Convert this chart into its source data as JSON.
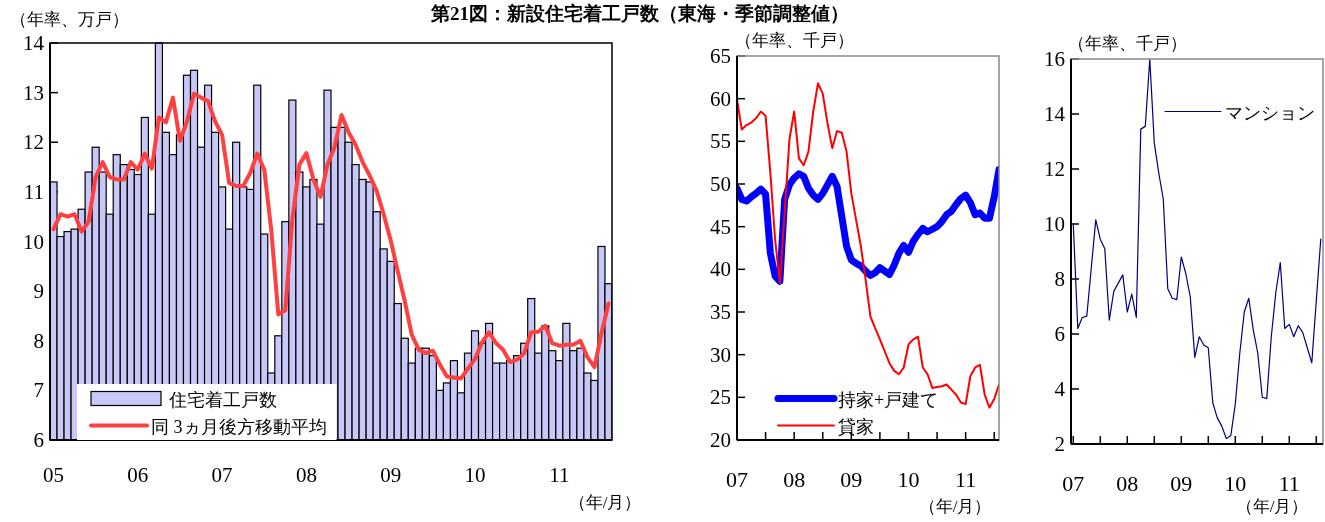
{
  "chart_data": [
    {
      "type": "bar",
      "title": "第21図：新設住宅着工戸数（東海・季節調整値）",
      "ylabel": "（年率、万戸）",
      "xlabel": "（年/月）",
      "legend": "bottom left",
      "ylim": [
        6,
        14
      ],
      "yticks": [
        6,
        7,
        8,
        9,
        10,
        11,
        12,
        13,
        14
      ],
      "categories": [
        "05",
        null,
        null,
        null,
        null,
        null,
        null,
        null,
        null,
        null,
        null,
        null,
        "06",
        null,
        null,
        null,
        null,
        null,
        null,
        null,
        null,
        null,
        null,
        null,
        "07",
        null,
        null,
        null,
        null,
        null,
        null,
        null,
        null,
        null,
        null,
        null,
        "08",
        null,
        null,
        null,
        null,
        null,
        null,
        null,
        null,
        null,
        null,
        null,
        "09",
        null,
        null,
        null,
        null,
        null,
        null,
        null,
        null,
        null,
        null,
        null,
        "10",
        null,
        null,
        null,
        null,
        null,
        null,
        null,
        null,
        null,
        null,
        null,
        "11",
        null,
        null,
        null,
        null,
        null,
        null,
        null
      ],
      "series": [
        {
          "name": "住宅着工戸数",
          "color": "#c8c8f8",
          "values": [
            11.2,
            10.1,
            10.2,
            10.25,
            10.65,
            11.4,
            11.9,
            11.4,
            10.55,
            11.75,
            11.55,
            11.45,
            11.35,
            12.5,
            10.55,
            14,
            12.2,
            11.75,
            12.15,
            13.35,
            13.45,
            11.9,
            13.15,
            12.2,
            11.1,
            10.25,
            12.0,
            11.1,
            11.05,
            13.15,
            10.15,
            7.35,
            8.1,
            10.4,
            12.85,
            11.4,
            11.1,
            11.25,
            10.35,
            13.05,
            12.3,
            12.3,
            12.0,
            11.55,
            11.25,
            11.2,
            10.6,
            9.85,
            9.6,
            8.75,
            8.05,
            7.55,
            7.85,
            7.85,
            7.7,
            7.0,
            7.15,
            7.6,
            6.95,
            7.75,
            8.2,
            7.95,
            8.35,
            7.55,
            7.55,
            7.6,
            7.7,
            7.95,
            8.85,
            7.75,
            8.3,
            7.8,
            7.6,
            8.35,
            7.8,
            7.85,
            7.35,
            7.2,
            9.9,
            9.15
          ]
        },
        {
          "name": "同 3ヵ月後方移動平均",
          "type": "line",
          "color": "#ff4040",
          "values": [
            10.25,
            10.55,
            10.5,
            10.55,
            10.2,
            10.4,
            11.3,
            11.6,
            11.3,
            11.25,
            11.25,
            11.6,
            11.45,
            11.77,
            11.47,
            12.5,
            12.4,
            12.9,
            12.03,
            12.42,
            12.98,
            12.9,
            12.83,
            12.42,
            12.15,
            11.18,
            11.12,
            11.12,
            11.38,
            11.77,
            11.45,
            10.22,
            8.53,
            8.62,
            10.45,
            11.55,
            11.78,
            11.25,
            10.9,
            11.55,
            11.9,
            12.55,
            12.2,
            11.95,
            11.6,
            11.33,
            11.02,
            10.55,
            10.02,
            9.4,
            8.8,
            8.12,
            7.82,
            7.75,
            7.8,
            7.52,
            7.28,
            7.26,
            7.24,
            7.44,
            7.63,
            7.97,
            8.17,
            7.95,
            7.82,
            7.57,
            7.62,
            7.75,
            8.17,
            8.18,
            8.3,
            7.95,
            7.9,
            7.92,
            7.92,
            8.0,
            7.67,
            7.47,
            8.15,
            8.75
          ]
        }
      ]
    },
    {
      "type": "line",
      "ylabel": "（年率、千戸）",
      "xlabel": "（年/月）",
      "legend": "bottom left",
      "ylim": [
        20,
        65
      ],
      "yticks": [
        20,
        25,
        30,
        35,
        40,
        45,
        50,
        55,
        60,
        65
      ],
      "xlim": [
        "2007-01",
        "2011-08"
      ],
      "xticks": [
        {
          "value": "2007-01",
          "label": "07"
        },
        {
          "value": "2007-07",
          "label": null
        },
        {
          "value": "2008-01",
          "label": "08"
        },
        {
          "value": "2008-07",
          "label": null
        },
        {
          "value": "2009-01",
          "label": "09"
        },
        {
          "value": "2009-07",
          "label": null
        },
        {
          "value": "2010-01",
          "label": "10"
        },
        {
          "value": "2010-07",
          "label": null
        },
        {
          "value": "2011-01",
          "label": "11"
        },
        {
          "value": "2011-07",
          "label": null
        }
      ],
      "x": [
        "2007-01",
        "2007-02",
        "2007-03",
        "2007-04",
        "2007-05",
        "2007-06",
        "2007-07",
        "2007-08",
        "2007-09",
        "2007-10",
        "2007-11",
        "2007-12",
        "2008-01",
        "2008-02",
        "2008-03",
        "2008-04",
        "2008-05",
        "2008-06",
        "2008-07",
        "2008-08",
        "2008-09",
        "2008-10",
        "2008-11",
        "2008-12",
        "2009-01",
        "2009-02",
        "2009-03",
        "2009-04",
        "2009-05",
        "2009-06",
        "2009-07",
        "2009-08",
        "2009-09",
        "2009-10",
        "2009-11",
        "2009-12",
        "2010-01",
        "2010-02",
        "2010-03",
        "2010-04",
        "2010-05",
        "2010-06",
        "2010-07",
        "2010-08",
        "2010-09",
        "2010-10",
        "2010-11",
        "2010-12",
        "2011-01",
        "2011-02",
        "2011-03",
        "2011-04",
        "2011-05",
        "2011-06",
        "2011-07",
        "2011-08"
      ],
      "series": [
        {
          "name": "持家+戸建て",
          "color": "#0000ff",
          "values": [
            49.5,
            48.2,
            48.0,
            48.5,
            48.9,
            49.4,
            48.8,
            41.9,
            39.2,
            38.6,
            48.2,
            49.9,
            50.7,
            51.2,
            50.9,
            49.5,
            48.7,
            48.2,
            48.9,
            49.9,
            50.9,
            49.7,
            46.2,
            42.7,
            41.1,
            40.7,
            40.4,
            39.8,
            39.3,
            39.6,
            40.2,
            39.8,
            39.4,
            40.5,
            41.9,
            42.8,
            42.0,
            43.3,
            44.1,
            44.8,
            44.4,
            44.7,
            45.0,
            45.6,
            46.4,
            46.8,
            47.6,
            48.3,
            48.7,
            47.8,
            46.4,
            46.6,
            46.0,
            46.0,
            48.5,
            51.7
          ]
        },
        {
          "name": "貸家",
          "color": "#ff0000",
          "values": [
            59.9,
            56.4,
            56.9,
            57.2,
            57.7,
            58.5,
            58.0,
            51.3,
            43.5,
            38.4,
            46.6,
            55.2,
            58.5,
            53.0,
            52.2,
            53.8,
            58.5,
            61.8,
            60.6,
            57.1,
            54.2,
            56.2,
            56.0,
            53.8,
            48.9,
            45.8,
            42.7,
            38.8,
            34.5,
            33.1,
            31.8,
            30.4,
            29.0,
            28.1,
            27.7,
            28.5,
            31.2,
            31.8,
            32.1,
            28.5,
            27.7,
            26.1,
            26.2,
            26.3,
            26.5,
            25.9,
            25.3,
            24.4,
            24.2,
            27.5,
            28.5,
            28.8,
            25.3,
            23.8,
            24.8,
            26.5
          ]
        }
      ]
    },
    {
      "type": "line",
      "ylabel": "（年率、千戸）",
      "xlabel": "（年/月）",
      "legend": "top right",
      "ylim": [
        2,
        16
      ],
      "yticks": [
        2,
        4,
        6,
        8,
        10,
        12,
        14,
        16
      ],
      "xlim": [
        "2006-12-16",
        "2011-08-16"
      ],
      "xticks": [
        {
          "value": "2007-01",
          "label": "07"
        },
        {
          "value": "2007-07",
          "label": null
        },
        {
          "value": "2008-01",
          "label": "08"
        },
        {
          "value": "2008-07",
          "label": null
        },
        {
          "value": "2009-01",
          "label": "09"
        },
        {
          "value": "2009-07",
          "label": null
        },
        {
          "value": "2010-01",
          "label": "10"
        },
        {
          "value": "2010-07",
          "label": null
        },
        {
          "value": "2011-01",
          "label": "11"
        },
        {
          "value": "2011-07",
          "label": null
        }
      ],
      "x": [
        "2007-01",
        "2007-02",
        "2007-03",
        "2007-04",
        "2007-05",
        "2007-06",
        "2007-07",
        "2007-08",
        "2007-09",
        "2007-10",
        "2007-11",
        "2007-12",
        "2008-01",
        "2008-02",
        "2008-03",
        "2008-04",
        "2008-05",
        "2008-06",
        "2008-07",
        "2008-08",
        "2008-09",
        "2008-10",
        "2008-11",
        "2008-12",
        "2009-01",
        "2009-02",
        "2009-03",
        "2009-04",
        "2009-05",
        "2009-06",
        "2009-07",
        "2009-08",
        "2009-09",
        "2009-10",
        "2009-11",
        "2009-12",
        "2010-01",
        "2010-02",
        "2010-03",
        "2010-04",
        "2010-05",
        "2010-06",
        "2010-07",
        "2010-08",
        "2010-09",
        "2010-10",
        "2010-11",
        "2010-12",
        "2011-01",
        "2011-02",
        "2011-03",
        "2011-04",
        "2011-05",
        "2011-06",
        "2011-07",
        "2011-08"
      ],
      "series": [
        {
          "name": "マンション",
          "color": "#000080",
          "values": [
            10.0,
            6.2,
            6.6,
            6.65,
            8.4,
            10.15,
            9.45,
            9.1,
            6.5,
            7.55,
            7.85,
            8.15,
            6.8,
            7.45,
            6.6,
            13.45,
            13.55,
            16.0,
            12.95,
            11.85,
            10.9,
            7.65,
            7.3,
            7.25,
            8.8,
            8.2,
            7.35,
            5.15,
            5.9,
            5.6,
            5.5,
            3.5,
            2.95,
            2.65,
            2.2,
            2.3,
            3.45,
            5.3,
            6.8,
            7.3,
            6.15,
            5.3,
            3.7,
            3.65,
            5.9,
            7.5,
            8.6,
            6.2,
            6.35,
            5.9,
            6.3,
            6.05,
            5.5,
            4.95,
            7.2,
            9.45
          ]
        }
      ]
    }
  ]
}
